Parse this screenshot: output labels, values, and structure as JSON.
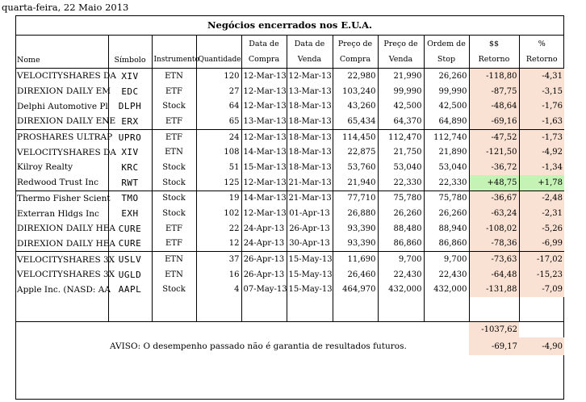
{
  "date": "quarta-feira, 22 Maio 2013",
  "title": "Negócios encerrados nos E.U.A.",
  "headers": {
    "nome": "Nome",
    "simbolo": "Símbolo",
    "instrumento": "Instrumento",
    "quantidade": "Quantidade",
    "data_compra": [
      "Data de",
      "Compra"
    ],
    "data_venda": [
      "Data de",
      "Venda"
    ],
    "preco_compra": [
      "Preço de",
      "Compra"
    ],
    "preco_venda": [
      "Preço de",
      "Venda"
    ],
    "ordem_stop": [
      "Ordem de",
      "Stop"
    ],
    "retorno_usd": [
      "$$",
      "Retorno"
    ],
    "retorno_pct": [
      "%",
      "Retorno"
    ]
  },
  "rows": [
    {
      "nome": "VELOCITYSHARES DA",
      "simbolo": "XIV",
      "instrumento": "ETN",
      "quantidade": "120",
      "data_compra": "12-Mar-13",
      "data_venda": "12-Mar-13",
      "preco_compra": "22,980",
      "preco_venda": "21,990",
      "stop": "26,260",
      "ret_usd": "-118,80",
      "ret_pct": "-4,31"
    },
    {
      "nome": "DIREXION DAILY EM",
      "simbolo": "EDC",
      "instrumento": "ETF",
      "quantidade": "27",
      "data_compra": "12-Mar-13",
      "data_venda": "13-Mar-13",
      "preco_compra": "103,240",
      "preco_venda": "99,990",
      "stop": "99,990",
      "ret_usd": "-87,75",
      "ret_pct": "-3,15"
    },
    {
      "nome": "Delphi Automotive Pl",
      "simbolo": "DLPH",
      "instrumento": "Stock",
      "quantidade": "64",
      "data_compra": "12-Mar-13",
      "data_venda": "18-Mar-13",
      "preco_compra": "43,260",
      "preco_venda": "42,500",
      "stop": "42,500",
      "ret_usd": "-48,64",
      "ret_pct": "-1,76"
    },
    {
      "nome": "DIREXION DAILY ENE",
      "simbolo": "ERX",
      "instrumento": "ETF",
      "quantidade": "65",
      "data_compra": "13-Mar-13",
      "data_venda": "18-Mar-13",
      "preco_compra": "65,434",
      "preco_venda": "64,370",
      "stop": "64,890",
      "ret_usd": "-69,16",
      "ret_pct": "-1,63"
    },
    {
      "nome": "PROSHARES ULTRAP",
      "simbolo": "UPRO",
      "instrumento": "ETF",
      "quantidade": "24",
      "data_compra": "12-Mar-13",
      "data_venda": "18-Mar-13",
      "preco_compra": "114,450",
      "preco_venda": "112,470",
      "stop": "112,740",
      "ret_usd": "-47,52",
      "ret_pct": "-1,73"
    },
    {
      "nome": "VELOCITYSHARES DA",
      "simbolo": "XIV",
      "instrumento": "ETN",
      "quantidade": "108",
      "data_compra": "14-Mar-13",
      "data_venda": "18-Mar-13",
      "preco_compra": "22,875",
      "preco_venda": "21,750",
      "stop": "21,890",
      "ret_usd": "-121,50",
      "ret_pct": "-4,92"
    },
    {
      "nome": "Kilroy Realty",
      "simbolo": "KRC",
      "instrumento": "Stock",
      "quantidade": "51",
      "data_compra": "15-Mar-13",
      "data_venda": "18-Mar-13",
      "preco_compra": "53,760",
      "preco_venda": "53,040",
      "stop": "53,040",
      "ret_usd": "-36,72",
      "ret_pct": "-1,34"
    },
    {
      "nome": "Redwood Trust Inc",
      "simbolo": "RWT",
      "instrumento": "Stock",
      "quantidade": "125",
      "data_compra": "12-Mar-13",
      "data_venda": "21-Mar-13",
      "preco_compra": "21,940",
      "preco_venda": "22,330",
      "stop": "22,330",
      "ret_usd": "+48,75",
      "ret_pct": "+1,78"
    },
    {
      "nome": "Thermo Fisher Scient",
      "simbolo": "TMO",
      "instrumento": "Stock",
      "quantidade": "19",
      "data_compra": "14-Mar-13",
      "data_venda": "21-Mar-13",
      "preco_compra": "77,710",
      "preco_venda": "75,780",
      "stop": "75,780",
      "ret_usd": "-36,67",
      "ret_pct": "-2,48"
    },
    {
      "nome": "Exterran Hldgs Inc",
      "simbolo": "EXH",
      "instrumento": "Stock",
      "quantidade": "102",
      "data_compra": "12-Mar-13",
      "data_venda": "01-Apr-13",
      "preco_compra": "26,880",
      "preco_venda": "26,260",
      "stop": "26,260",
      "ret_usd": "-63,24",
      "ret_pct": "-2,31"
    },
    {
      "nome": "DIREXION DAILY HEA",
      "simbolo": "CURE",
      "instrumento": "ETF",
      "quantidade": "22",
      "data_compra": "24-Apr-13",
      "data_venda": "26-Apr-13",
      "preco_compra": "93,390",
      "preco_venda": "88,480",
      "stop": "88,940",
      "ret_usd": "-108,02",
      "ret_pct": "-5,26"
    },
    {
      "nome": "DIREXION DAILY HEA",
      "simbolo": "CURE",
      "instrumento": "ETF",
      "quantidade": "12",
      "data_compra": "24-Apr-13",
      "data_venda": "30-Apr-13",
      "preco_compra": "93,390",
      "preco_venda": "86,860",
      "stop": "86,860",
      "ret_usd": "-78,36",
      "ret_pct": "-6,99"
    },
    {
      "nome": "VELOCITYSHARES 3X",
      "simbolo": "USLV",
      "instrumento": "ETN",
      "quantidade": "37",
      "data_compra": "26-Apr-13",
      "data_venda": "15-May-13",
      "preco_compra": "11,690",
      "preco_venda": "9,700",
      "stop": "9,700",
      "ret_usd": "-73,63",
      "ret_pct": "-17,02"
    },
    {
      "nome": "VELOCITYSHARES 3X",
      "simbolo": "UGLD",
      "instrumento": "ETN",
      "quantidade": "16",
      "data_compra": "26-Apr-13",
      "data_venda": "15-May-13",
      "preco_compra": "26,460",
      "preco_venda": "22,430",
      "stop": "22,430",
      "ret_usd": "-64,48",
      "ret_pct": "-15,23"
    },
    {
      "nome": "Apple Inc. (NASD: AA",
      "simbolo": "AAPL",
      "instrumento": "Stock",
      "quantidade": "4",
      "data_compra": "07-May-13",
      "data_venda": "15-May-13",
      "preco_compra": "464,970",
      "preco_venda": "432,000",
      "stop": "432,000",
      "ret_usd": "-131,88",
      "ret_pct": "-7,09"
    }
  ],
  "totals": {
    "ret_usd_total": "-1037,62",
    "ret_usd_avg": "-69,17",
    "ret_pct_avg": "-4,90"
  },
  "disclaimer": "AVISO: O desempenho passado não é garantia de resultados futuros."
}
